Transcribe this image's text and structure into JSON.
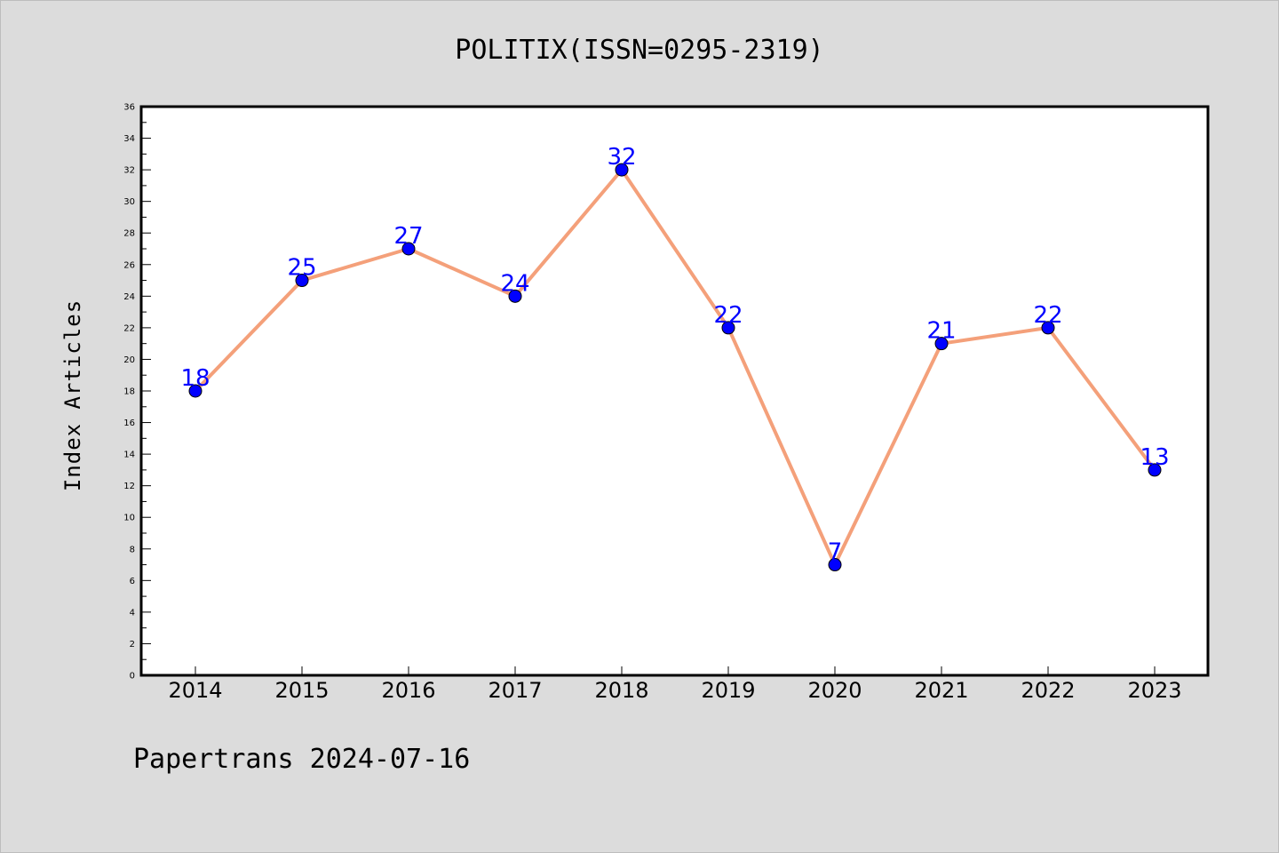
{
  "chart_data": {
    "type": "line",
    "title": "POLITIX(ISSN=0295-2319)",
    "ylabel": "Index Articles",
    "xlabel": "",
    "categories": [
      "2014",
      "2015",
      "2016",
      "2017",
      "2018",
      "2019",
      "2020",
      "2021",
      "2022",
      "2023"
    ],
    "series": [
      {
        "values": [
          18,
          25,
          27,
          24,
          32,
          22,
          7,
          21,
          22,
          13
        ]
      }
    ],
    "ylim": [
      0,
      36
    ],
    "yticks": [
      0,
      2,
      4,
      6,
      8,
      10,
      12,
      14,
      16,
      18,
      20,
      22,
      24,
      26,
      28,
      30,
      32,
      34,
      36
    ],
    "grid": false,
    "legend": "none",
    "line_color": "#f4a07a",
    "marker_color": "#0000ff",
    "label_color": "#0000ff"
  },
  "footer": {
    "text": "Papertrans 2024-07-16"
  }
}
